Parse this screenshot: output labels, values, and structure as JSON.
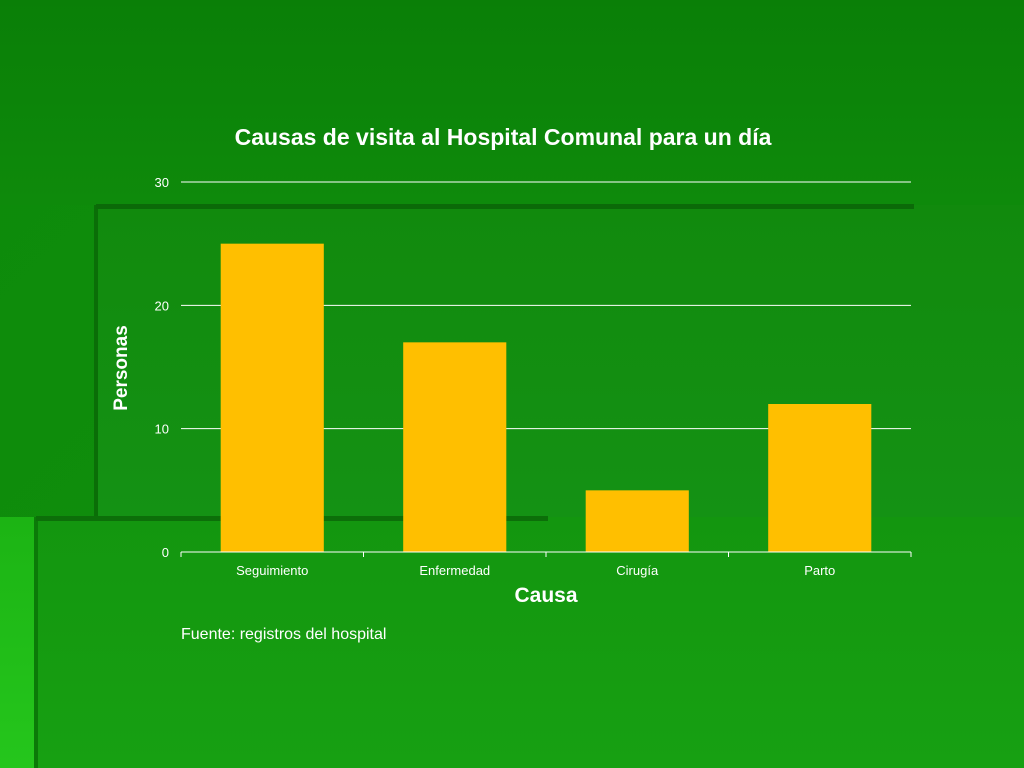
{
  "colors": {
    "bar": "#FFBF00",
    "gridline": "#ffffff",
    "text": "#ffffff"
  },
  "chart_data": {
    "type": "bar",
    "title": "Causas de visita al Hospital Comunal para un día",
    "xlabel": "Causa",
    "ylabel": "Personas",
    "categories": [
      "Seguimiento",
      "Enfermedad",
      "Cirugía",
      "Parto"
    ],
    "values": [
      25,
      17,
      5,
      12
    ],
    "ylim": [
      0,
      30
    ],
    "yticks": [
      0,
      10,
      20,
      30
    ],
    "grid": true,
    "legend": "none"
  },
  "source_note": "Fuente: registros del hospital"
}
